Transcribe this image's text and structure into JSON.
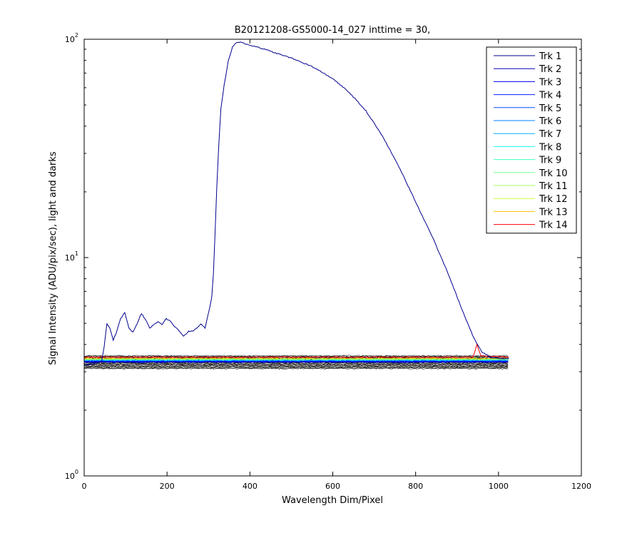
{
  "chart_data": {
    "type": "line",
    "title": "B20121208-GS5000-14_027 inttime = 30,",
    "xlabel": "Wavelength Dim/Pixel",
    "ylabel": "Signal Intensity (ADU/pix/sec), light and darks",
    "xlim": [
      0,
      1200
    ],
    "ylim": [
      1,
      100
    ],
    "yscale": "log",
    "grid": false,
    "legend_position": "top-right",
    "x_ticks": [
      0,
      200,
      400,
      600,
      800,
      1000,
      1200
    ],
    "y_ticks": [
      {
        "value": 1,
        "base": "10",
        "exp": "0"
      },
      {
        "value": 10,
        "base": "10",
        "exp": "1"
      },
      {
        "value": 100,
        "base": "10",
        "exp": "2"
      }
    ],
    "series": [
      {
        "name": "Trk 1",
        "color": "#00008f",
        "baseline": 3.26,
        "points": [
          [
            0,
            3.2
          ],
          [
            42,
            3.32
          ],
          [
            48,
            3.9
          ],
          [
            55,
            5.0
          ],
          [
            62,
            4.75
          ],
          [
            70,
            4.2
          ],
          [
            78,
            4.55
          ],
          [
            88,
            5.25
          ],
          [
            98,
            5.6
          ],
          [
            108,
            4.75
          ],
          [
            118,
            4.55
          ],
          [
            128,
            5.0
          ],
          [
            138,
            5.55
          ],
          [
            148,
            5.2
          ],
          [
            158,
            4.75
          ],
          [
            168,
            4.95
          ],
          [
            178,
            5.1
          ],
          [
            188,
            4.95
          ],
          [
            198,
            5.25
          ],
          [
            208,
            5.1
          ],
          [
            218,
            4.85
          ],
          [
            230,
            4.6
          ],
          [
            240,
            4.35
          ],
          [
            252,
            4.6
          ],
          [
            262,
            4.6
          ],
          [
            272,
            4.75
          ],
          [
            282,
            4.95
          ],
          [
            292,
            4.75
          ],
          [
            302,
            5.8
          ],
          [
            308,
            6.6
          ],
          [
            312,
            8.5
          ],
          [
            316,
            13
          ],
          [
            320,
            21
          ],
          [
            325,
            33
          ],
          [
            330,
            48
          ],
          [
            338,
            62
          ],
          [
            348,
            80
          ],
          [
            358,
            92
          ],
          [
            368,
            97
          ],
          [
            378,
            97
          ],
          [
            390,
            95
          ],
          [
            420,
            92
          ],
          [
            450,
            88
          ],
          [
            500,
            82
          ],
          [
            550,
            75
          ],
          [
            600,
            66
          ],
          [
            640,
            57
          ],
          [
            680,
            47
          ],
          [
            720,
            36
          ],
          [
            760,
            26
          ],
          [
            800,
            18
          ],
          [
            840,
            12.5
          ],
          [
            880,
            8.3
          ],
          [
            910,
            5.9
          ],
          [
            940,
            4.3
          ],
          [
            960,
            3.7
          ],
          [
            980,
            3.5
          ],
          [
            1000,
            3.45
          ],
          [
            1025,
            3.45
          ]
        ]
      },
      {
        "name": "Trk 2",
        "color": "#0000bf",
        "baseline": 3.32
      },
      {
        "name": "Trk 3",
        "color": "#0000ef",
        "baseline": 3.33
      },
      {
        "name": "Trk 4",
        "color": "#0020ff",
        "baseline": 3.34
      },
      {
        "name": "Trk 5",
        "color": "#0050ff",
        "baseline": 3.35
      },
      {
        "name": "Trk 6",
        "color": "#0080ff",
        "baseline": 3.36
      },
      {
        "name": "Trk 7",
        "color": "#00b0ff",
        "baseline": 3.37
      },
      {
        "name": "Trk 8",
        "color": "#10ffef",
        "baseline": 3.38
      },
      {
        "name": "Trk 9",
        "color": "#40ffbf",
        "baseline": 3.39
      },
      {
        "name": "Trk 10",
        "color": "#70ff8f",
        "baseline": 3.4
      },
      {
        "name": "Trk 11",
        "color": "#a0ff60",
        "baseline": 3.41
      },
      {
        "name": "Trk 12",
        "color": "#d0ff30",
        "baseline": 3.43
      },
      {
        "name": "Trk 13",
        "color": "#ffbf00",
        "baseline": 3.45
      },
      {
        "name": "Trk 14",
        "color": "#ff0000",
        "baseline": 3.5,
        "points": [
          [
            0,
            3.5
          ],
          [
            938,
            3.5
          ],
          [
            944,
            3.75
          ],
          [
            948,
            4.0
          ],
          [
            952,
            3.8
          ],
          [
            958,
            3.55
          ],
          [
            1025,
            3.5
          ]
        ]
      }
    ],
    "dark_band_range": [
      3.1,
      3.55
    ],
    "x_extent": [
      0,
      1025
    ]
  }
}
